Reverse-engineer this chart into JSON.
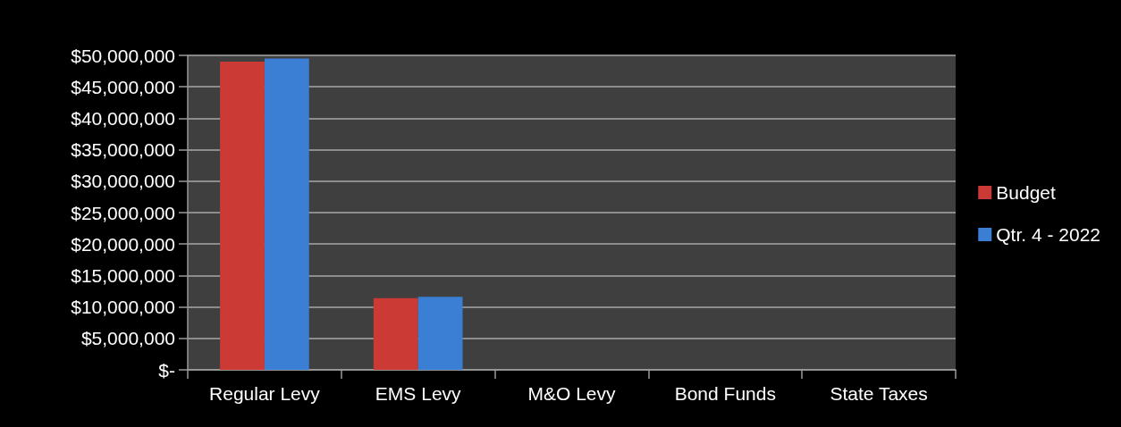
{
  "chart_data": {
    "type": "bar",
    "categories": [
      "Regular Levy",
      "EMS Levy",
      "M&O Levy",
      "Bond Funds",
      "State Taxes"
    ],
    "series": [
      {
        "name": "Budget",
        "color": "#cc3a35",
        "values": [
          49000000,
          11400000,
          0,
          0,
          0
        ]
      },
      {
        "name": "Qtr. 4 - 2022",
        "color": "#3b7fd4",
        "values": [
          49500000,
          11600000,
          0,
          0,
          0
        ]
      }
    ],
    "ylim": [
      0,
      50000000
    ],
    "yticks": [
      {
        "value": 0,
        "label": "$-"
      },
      {
        "value": 5000000,
        "label": "$5,000,000"
      },
      {
        "value": 10000000,
        "label": "$10,000,000"
      },
      {
        "value": 15000000,
        "label": "$15,000,000"
      },
      {
        "value": 20000000,
        "label": "$20,000,000"
      },
      {
        "value": 25000000,
        "label": "$25,000,000"
      },
      {
        "value": 30000000,
        "label": "$30,000,000"
      },
      {
        "value": 35000000,
        "label": "$35,000,000"
      },
      {
        "value": 40000000,
        "label": "$40,000,000"
      },
      {
        "value": 45000000,
        "label": "$45,000,000"
      },
      {
        "value": 50000000,
        "label": "$50,000,000"
      }
    ],
    "grid": "y",
    "legend": "right"
  }
}
